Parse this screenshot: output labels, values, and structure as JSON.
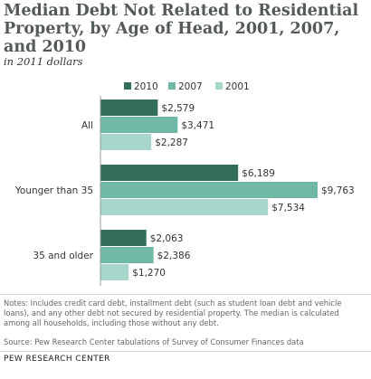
{
  "title": "Median Debt Not Related to Residential Property, by Age of Head, 2001, 2007, and 2010",
  "subtitle": "in 2011 dollars",
  "chart_data": {
    "type": "bar",
    "orientation": "horizontal",
    "categories": [
      "All",
      "Younger than 35",
      "35 and older"
    ],
    "series": [
      {
        "name": "2010",
        "color": "#336e5c",
        "values": [
          2579,
          6189,
          2063
        ],
        "labels": [
          "$2,579",
          "$6,189",
          "$2,063"
        ]
      },
      {
        "name": "2007",
        "color": "#70b8a6",
        "values": [
          3471,
          9763,
          2386
        ],
        "labels": [
          "$3,471",
          "$9,763",
          "$2,386"
        ]
      },
      {
        "name": "2001",
        "color": "#a8d6cb",
        "values": [
          2287,
          7534,
          1270
        ],
        "labels": [
          "$2,287",
          "$7,534",
          "$1,270"
        ]
      }
    ],
    "xlim": [
      0,
      10000
    ],
    "legend": "top",
    "grid": false
  },
  "notes": "Notes: Includes credit card debt, installment debt (such as student loan debt and vehicle loans), and any other debt not secured by residential property. The median is calculated among all households, including those without any debt.",
  "source": "Source: Pew Research Center tabulations of Survey of Consumer Finances data",
  "org": "PEW RESEARCH CENTER"
}
